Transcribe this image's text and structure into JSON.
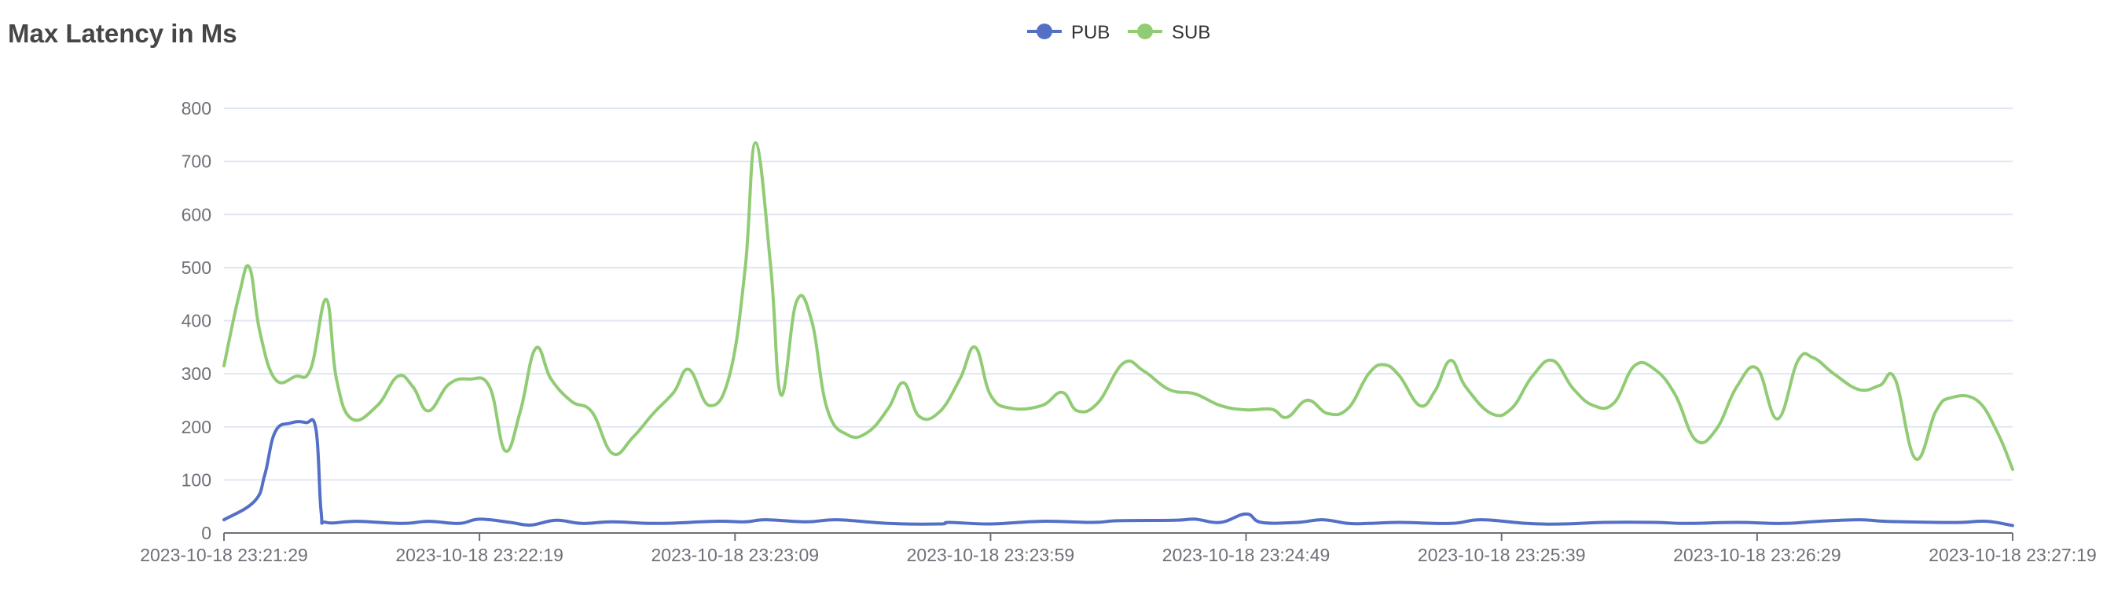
{
  "title": "Max Latency in Ms",
  "chart_data": {
    "type": "line",
    "title": "Max Latency in Ms",
    "xlabel": "",
    "ylabel": "",
    "ylim": [
      0,
      800
    ],
    "y_ticks": [
      0,
      100,
      200,
      300,
      400,
      500,
      600,
      700,
      800
    ],
    "x_tick_labels": [
      "2023-10-18 23:21:29",
      "2023-10-18 23:22:19",
      "2023-10-18 23:23:09",
      "2023-10-18 23:23:59",
      "2023-10-18 23:24:49",
      "2023-10-18 23:25:39",
      "2023-10-18 23:26:29",
      "2023-10-18 23:27:19"
    ],
    "x_range_seconds": [
      0,
      350
    ],
    "legend_position": "top-center",
    "grid": true,
    "series": [
      {
        "name": "PUB",
        "color": "#5470c6",
        "points": [
          [
            0,
            25
          ],
          [
            6,
            60
          ],
          [
            8,
            110
          ],
          [
            10,
            190
          ],
          [
            13,
            207
          ],
          [
            16,
            208
          ],
          [
            18,
            195
          ],
          [
            19,
            40
          ],
          [
            20,
            20
          ],
          [
            26,
            22
          ],
          [
            35,
            18
          ],
          [
            40,
            22
          ],
          [
            46,
            18
          ],
          [
            50,
            26
          ],
          [
            56,
            20
          ],
          [
            60,
            15
          ],
          [
            65,
            24
          ],
          [
            70,
            18
          ],
          [
            76,
            21
          ],
          [
            85,
            18
          ],
          [
            96,
            22
          ],
          [
            102,
            21
          ],
          [
            106,
            25
          ],
          [
            114,
            21
          ],
          [
            120,
            25
          ],
          [
            130,
            18
          ],
          [
            140,
            17
          ],
          [
            142,
            20
          ],
          [
            150,
            17
          ],
          [
            160,
            22
          ],
          [
            170,
            20
          ],
          [
            175,
            23
          ],
          [
            186,
            24
          ],
          [
            190,
            26
          ],
          [
            195,
            20
          ],
          [
            200,
            36
          ],
          [
            203,
            20
          ],
          [
            210,
            20
          ],
          [
            215,
            25
          ],
          [
            220,
            18
          ],
          [
            224,
            18
          ],
          [
            230,
            20
          ],
          [
            240,
            18
          ],
          [
            246,
            25
          ],
          [
            255,
            18
          ],
          [
            262,
            17
          ],
          [
            270,
            20
          ],
          [
            280,
            20
          ],
          [
            286,
            18
          ],
          [
            296,
            20
          ],
          [
            305,
            18
          ],
          [
            312,
            22
          ],
          [
            320,
            25
          ],
          [
            325,
            22
          ],
          [
            335,
            20
          ],
          [
            340,
            20
          ],
          [
            345,
            22
          ],
          [
            350,
            14
          ]
        ]
      },
      {
        "name": "SUB",
        "color": "#91cc75",
        "points": [
          [
            0,
            315
          ],
          [
            3,
            450
          ],
          [
            5,
            500
          ],
          [
            7,
            380
          ],
          [
            10,
            290
          ],
          [
            14,
            295
          ],
          [
            17,
            310
          ],
          [
            20,
            440
          ],
          [
            22,
            290
          ],
          [
            25,
            215
          ],
          [
            30,
            240
          ],
          [
            34,
            295
          ],
          [
            37,
            275
          ],
          [
            40,
            230
          ],
          [
            44,
            280
          ],
          [
            48,
            290
          ],
          [
            52,
            275
          ],
          [
            55,
            155
          ],
          [
            58,
            230
          ],
          [
            61,
            348
          ],
          [
            64,
            290
          ],
          [
            68,
            248
          ],
          [
            72,
            228
          ],
          [
            76,
            150
          ],
          [
            80,
            180
          ],
          [
            84,
            225
          ],
          [
            88,
            265
          ],
          [
            91,
            308
          ],
          [
            95,
            240
          ],
          [
            99,
            300
          ],
          [
            102,
            500
          ],
          [
            104,
            735
          ],
          [
            107,
            500
          ],
          [
            109,
            260
          ],
          [
            112,
            435
          ],
          [
            115,
            400
          ],
          [
            118,
            235
          ],
          [
            122,
            185
          ],
          [
            126,
            190
          ],
          [
            130,
            235
          ],
          [
            133,
            283
          ],
          [
            136,
            220
          ],
          [
            140,
            228
          ],
          [
            144,
            290
          ],
          [
            147,
            350
          ],
          [
            150,
            260
          ],
          [
            154,
            235
          ],
          [
            160,
            240
          ],
          [
            164,
            265
          ],
          [
            167,
            230
          ],
          [
            171,
            245
          ],
          [
            176,
            320
          ],
          [
            180,
            305
          ],
          [
            185,
            270
          ],
          [
            190,
            262
          ],
          [
            195,
            240
          ],
          [
            200,
            232
          ],
          [
            205,
            233
          ],
          [
            208,
            218
          ],
          [
            212,
            250
          ],
          [
            216,
            225
          ],
          [
            220,
            235
          ],
          [
            224,
            300
          ],
          [
            227,
            317
          ],
          [
            230,
            296
          ],
          [
            234,
            240
          ],
          [
            237,
            268
          ],
          [
            240,
            325
          ],
          [
            243,
            275
          ],
          [
            248,
            225
          ],
          [
            252,
            235
          ],
          [
            256,
            295
          ],
          [
            260,
            325
          ],
          [
            264,
            272
          ],
          [
            268,
            240
          ],
          [
            272,
            245
          ],
          [
            276,
            315
          ],
          [
            280,
            308
          ],
          [
            284,
            260
          ],
          [
            288,
            175
          ],
          [
            292,
            195
          ],
          [
            296,
            275
          ],
          [
            300,
            310
          ],
          [
            304,
            215
          ],
          [
            308,
            325
          ],
          [
            311,
            330
          ],
          [
            315,
            300
          ],
          [
            320,
            270
          ],
          [
            324,
            278
          ],
          [
            327,
            290
          ],
          [
            331,
            140
          ],
          [
            335,
            230
          ],
          [
            338,
            255
          ],
          [
            343,
            250
          ],
          [
            347,
            190
          ],
          [
            350,
            120
          ]
        ]
      }
    ]
  }
}
